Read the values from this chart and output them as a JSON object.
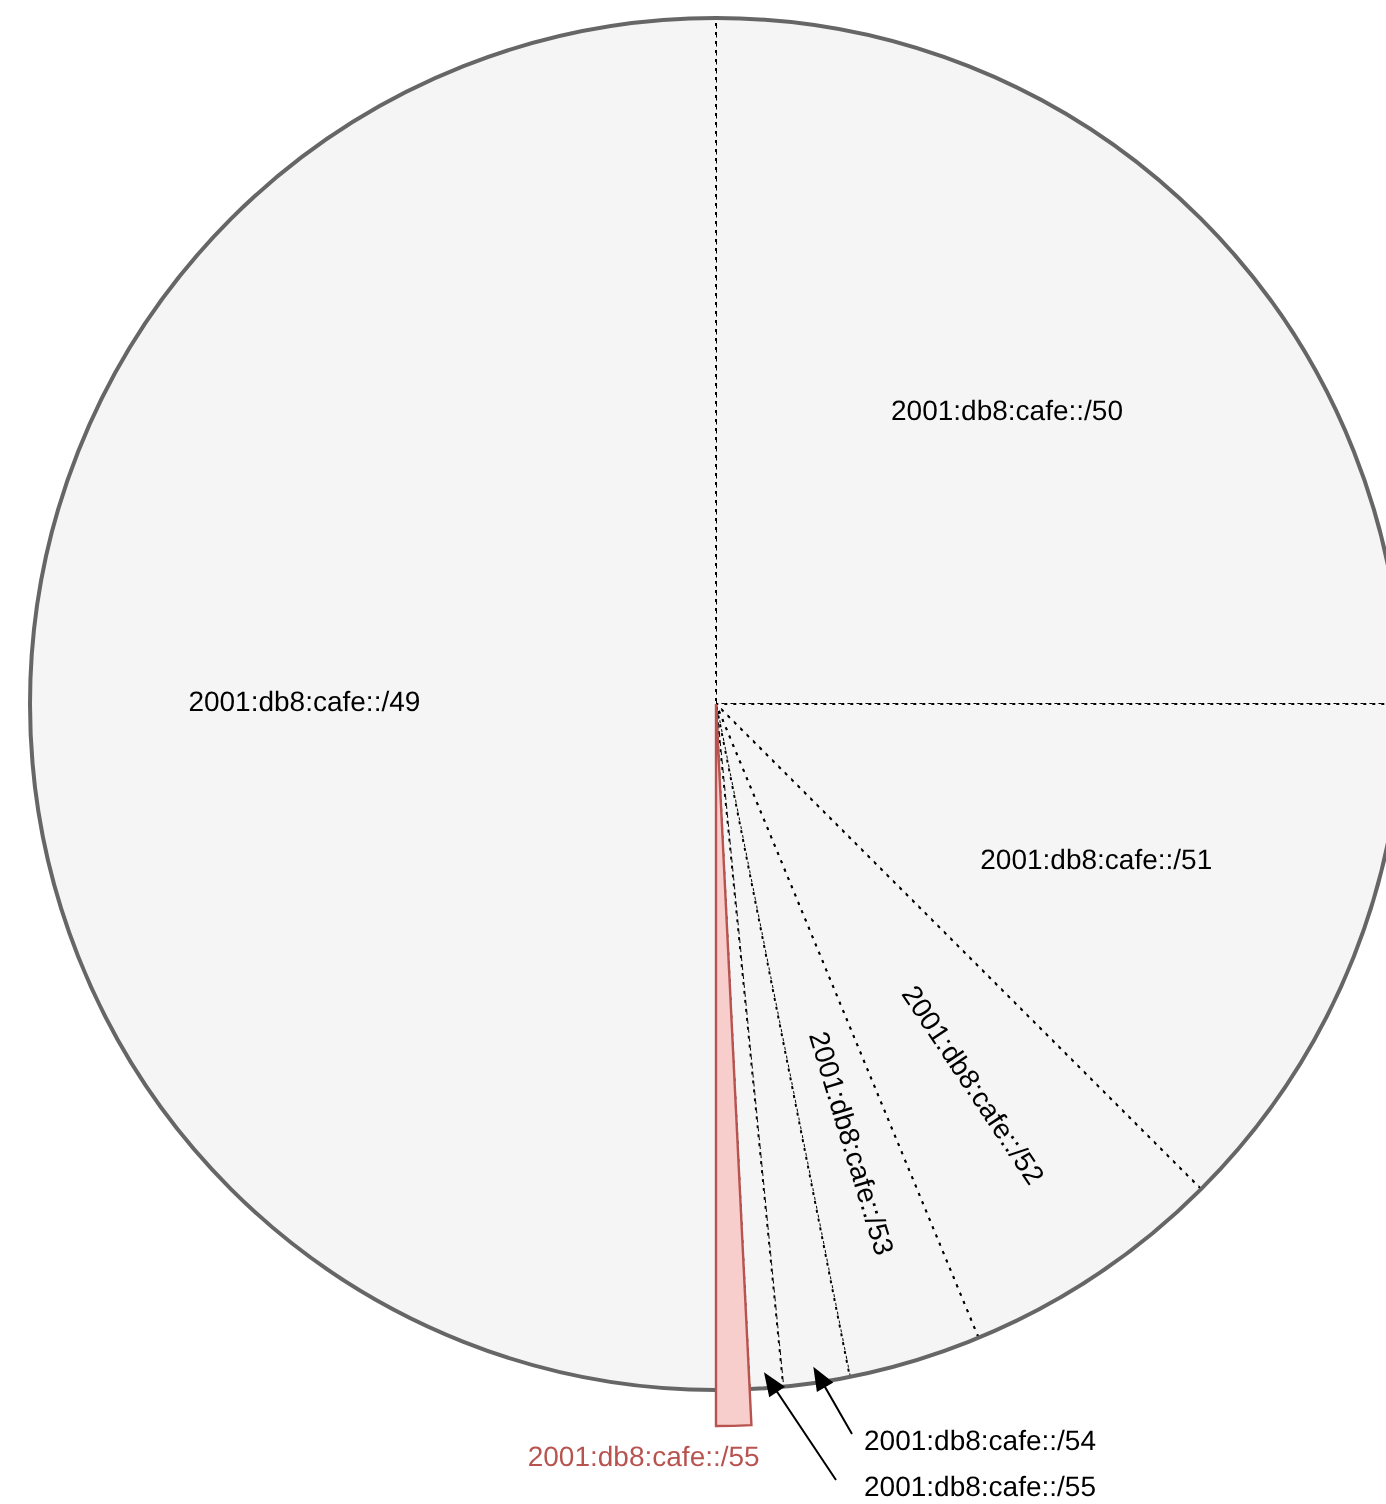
{
  "chart_data": {
    "type": "pie",
    "categories": [
      "2001:db8:cafe::/50",
      "2001:db8:cafe::/51",
      "2001:db8:cafe::/52",
      "2001:db8:cafe::/53",
      "2001:db8:cafe::/54",
      "2001:db8:cafe::/55",
      "2001:db8:cafe::/55",
      "2001:db8:cafe::/49"
    ],
    "values": [
      25,
      12.5,
      6.25,
      3.125,
      1.5625,
      0.78125,
      0.78125,
      50
    ],
    "colors": [
      "#f5f5f5",
      "#f5f5f5",
      "#f5f5f5",
      "#f5f5f5",
      "#f5f5f5",
      "#f5f5f5",
      "#f8cecc",
      "#f5f5f5"
    ]
  }
}
